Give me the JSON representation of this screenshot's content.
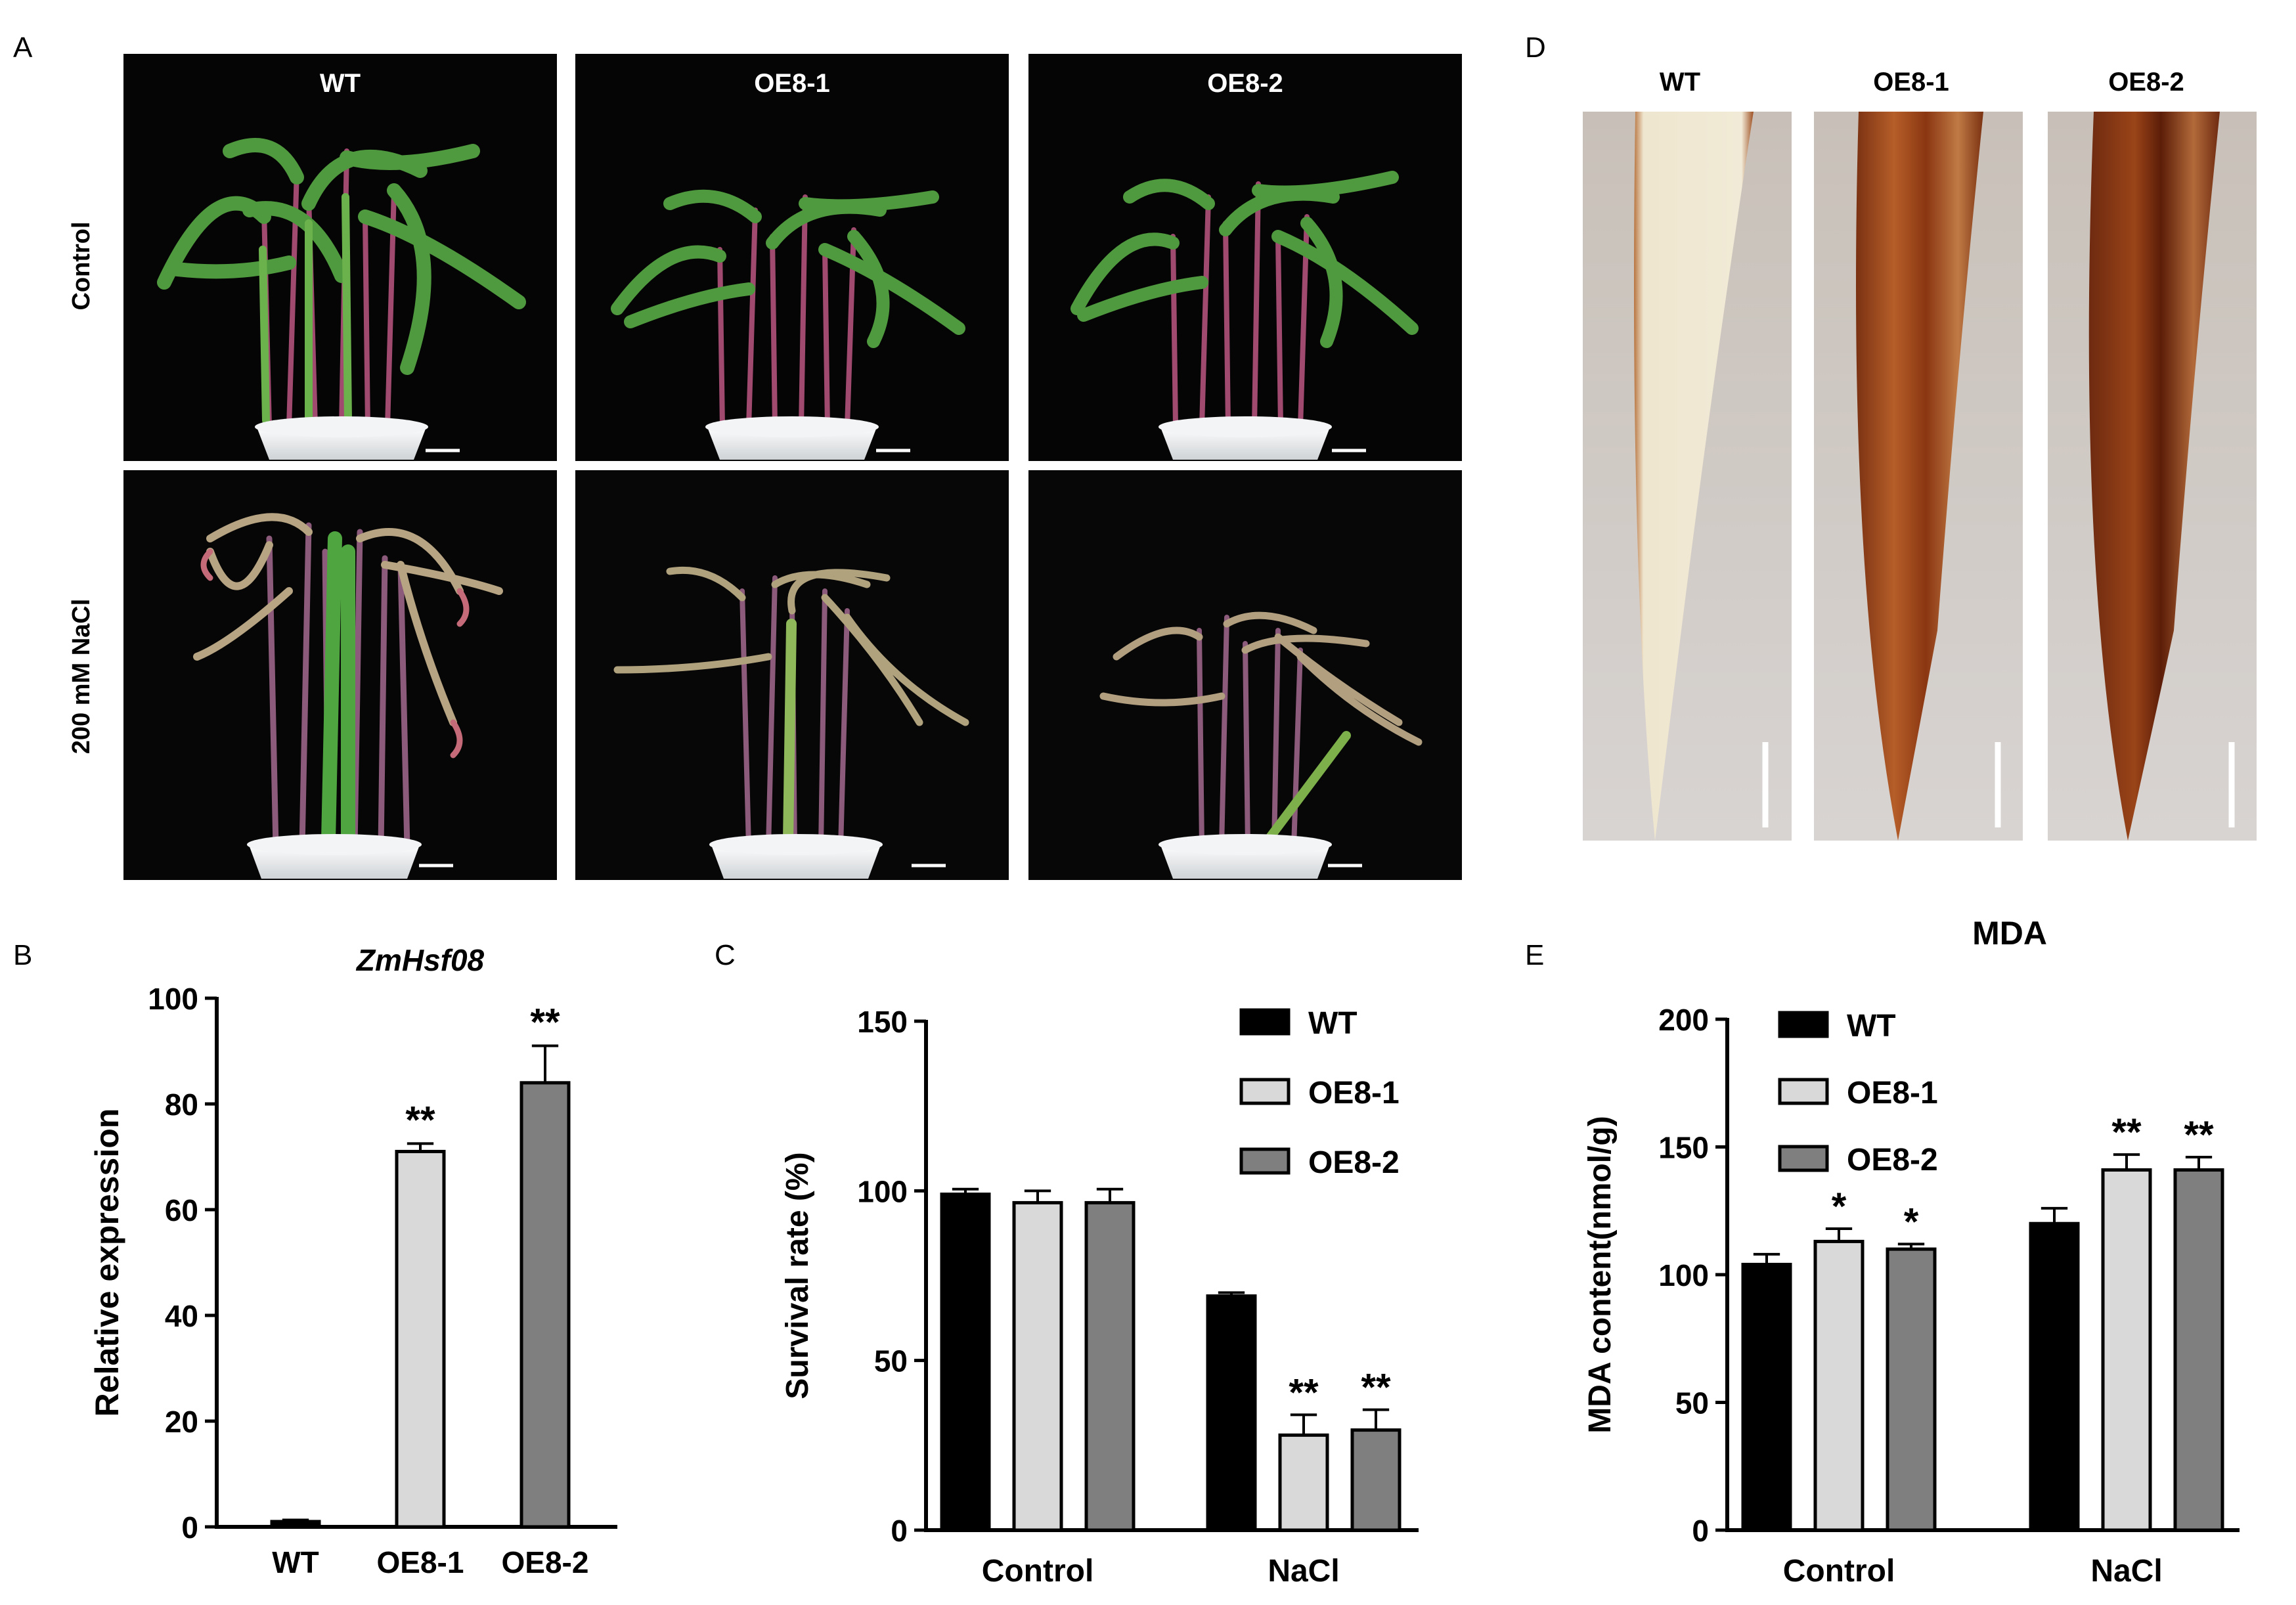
{
  "panel_letters": {
    "a": "A",
    "b": "B",
    "c": "C",
    "d": "D",
    "e": "E"
  },
  "panel_a": {
    "columns": [
      "WT",
      "OE8-1",
      "OE8-2"
    ],
    "rows": [
      "Control",
      "200 mM NaCl"
    ]
  },
  "panel_d": {
    "columns": [
      "WT",
      "OE8-1",
      "OE8-2"
    ]
  },
  "chart_data": [
    {
      "panel": "B",
      "type": "bar",
      "title": "ZmHsf08",
      "xlabel": "",
      "ylabel": "Relative expression",
      "categories": [
        "WT",
        "OE8-1",
        "OE8-2"
      ],
      "values": [
        1,
        71,
        84
      ],
      "errors": [
        0.3,
        1.5,
        7
      ],
      "significance": [
        "",
        "**",
        "**"
      ],
      "colors": [
        "#000000",
        "#d9d9d9",
        "#7f7f7f"
      ],
      "ylim": [
        0,
        100
      ],
      "yticks": [
        0,
        20,
        40,
        60,
        80,
        100
      ],
      "ytick_labels": [
        "0",
        "20",
        "40",
        "60",
        "80",
        "100"
      ]
    },
    {
      "panel": "C",
      "type": "bar",
      "xlabel": "",
      "ylabel": "Survival rate (%)",
      "categories": [
        "Control",
        "NaCl"
      ],
      "series": [
        {
          "name": "WT",
          "values": [
            99,
            69
          ],
          "errors": [
            1.5,
            1
          ],
          "significance": [
            "",
            ""
          ],
          "color": "#000000"
        },
        {
          "name": "OE8-1",
          "values": [
            96.5,
            28
          ],
          "errors": [
            3.5,
            6
          ],
          "significance": [
            "",
            "**"
          ],
          "color": "#d9d9d9"
        },
        {
          "name": "OE8-2",
          "values": [
            96.5,
            29.5
          ],
          "errors": [
            4,
            6
          ],
          "significance": [
            "",
            "**"
          ],
          "color": "#7f7f7f"
        }
      ],
      "ylim": [
        0,
        150
      ],
      "yticks": [
        0,
        50,
        100,
        150
      ],
      "ytick_labels": [
        "0",
        "50",
        "100",
        "150"
      ],
      "legend_position": "top-right"
    },
    {
      "panel": "E",
      "type": "bar",
      "title": "MDA",
      "xlabel": "",
      "ylabel": "MDA content(nmol/g)",
      "categories": [
        "Control",
        "NaCl"
      ],
      "series": [
        {
          "name": "WT",
          "values": [
            104,
            120
          ],
          "errors": [
            4,
            6
          ],
          "significance": [
            "",
            ""
          ],
          "color": "#000000"
        },
        {
          "name": "OE8-1",
          "values": [
            113,
            141
          ],
          "errors": [
            5,
            6
          ],
          "significance": [
            "*",
            "**"
          ],
          "color": "#d9d9d9"
        },
        {
          "name": "OE8-2",
          "values": [
            110,
            141
          ],
          "errors": [
            2,
            5
          ],
          "significance": [
            "*",
            "**"
          ],
          "color": "#7f7f7f"
        }
      ],
      "ylim": [
        0,
        200
      ],
      "yticks": [
        0,
        50,
        100,
        150,
        200
      ],
      "ytick_labels": [
        "0",
        "50",
        "100",
        "150",
        "200"
      ],
      "legend_position": "top-left"
    }
  ]
}
